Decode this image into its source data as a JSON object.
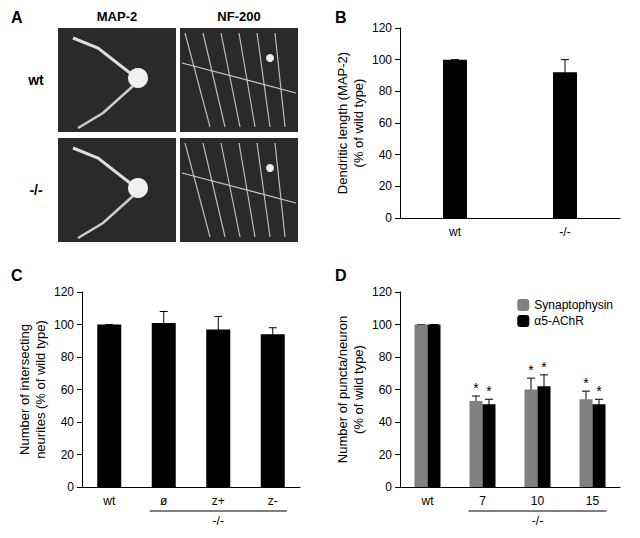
{
  "image_panel": {
    "title": "A",
    "columns": [
      "MAP-2",
      "NF-200"
    ],
    "rows": [
      "wt",
      "-/-"
    ]
  },
  "chart_data": [
    {
      "type": "bar",
      "title": "B",
      "categories": [
        "wt",
        "-/-"
      ],
      "values": [
        100,
        92
      ],
      "errors": [
        0,
        8
      ],
      "color": "#000000",
      "ylabel": "Dendritic length (MAP-2)\n(% of wild type)",
      "ylim": [
        0,
        120
      ],
      "yticks": [
        0,
        20,
        40,
        60,
        80,
        100,
        120
      ],
      "grid": false
    },
    {
      "type": "bar",
      "title": "C",
      "categories": [
        "wt",
        "ø",
        "z+",
        "z-"
      ],
      "xlabel": "-/-",
      "values": [
        100,
        101,
        97,
        94
      ],
      "errors": [
        0,
        7,
        8,
        4
      ],
      "color": "#000000",
      "ylabel": "Number of intersecting\nneurites (% of wild type)",
      "ylim": [
        0,
        120
      ],
      "yticks": [
        0,
        20,
        40,
        60,
        80,
        100,
        120
      ],
      "grid": false
    },
    {
      "type": "bar",
      "title": "D",
      "categories": [
        "wt",
        "7",
        "10",
        "15"
      ],
      "xlabel": "-/-",
      "series": [
        {
          "name": "Synaptophysin",
          "color": "#808080",
          "values": [
            100,
            53,
            60,
            54
          ],
          "errors": [
            0,
            3,
            7,
            5
          ],
          "annotations": [
            null,
            "*",
            "*",
            "*"
          ]
        },
        {
          "name": "α5-AChR",
          "color": "#000000",
          "values": [
            100,
            51,
            62,
            51
          ],
          "errors": [
            0,
            3,
            7,
            3
          ],
          "annotations": [
            null,
            "*",
            "*",
            "*"
          ]
        }
      ],
      "ylabel": "Number of puncta/neuron\n(% of wild type)",
      "ylim": [
        0,
        120
      ],
      "yticks": [
        0,
        20,
        40,
        60,
        80,
        100,
        120
      ],
      "grid": false,
      "legend": "upper right"
    }
  ]
}
